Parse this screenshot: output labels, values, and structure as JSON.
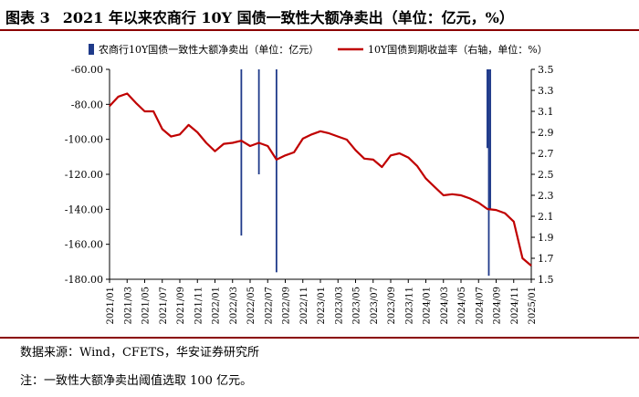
{
  "header": {
    "label": "图表 3",
    "title": "2021 年以来农商行 10Y 国债一致性大额净卖出（单位：亿元，%）"
  },
  "footer": {
    "source": "数据来源：Wind，CFETS，华安证券研究所",
    "note": "注：一致性大额净卖出阈值选取 100 亿元。"
  },
  "chart_data": {
    "type": "bar+line",
    "legend": [
      "农商行10Y国债一致性大额净卖出（单位：亿元）",
      "10Y国债到期收益率（右轴，单位：%）"
    ],
    "legend_position": "top",
    "colors": {
      "bars": "#1f3a8a",
      "line": "#c00000"
    },
    "x_tick_labels": [
      "2021/01",
      "2021/03",
      "2021/05",
      "2021/07",
      "2021/09",
      "2021/11",
      "2022/01",
      "2022/03",
      "2022/05",
      "2022/07",
      "2022/09",
      "2022/11",
      "2023/01",
      "2023/03",
      "2023/05",
      "2023/07",
      "2023/09",
      "2023/11",
      "2024/01",
      "2024/03",
      "2024/05",
      "2024/07",
      "2024/09",
      "2024/11",
      "2025/01"
    ],
    "y_left": {
      "min": -180,
      "max": -60,
      "ticks": [
        "-60.00",
        "-80.00",
        "-100.00",
        "-120.00",
        "-140.00",
        "-160.00",
        "-180.00"
      ]
    },
    "y_right": {
      "min": 1.5,
      "max": 3.5,
      "ticks": [
        "3.5",
        "3.3",
        "3.1",
        "2.9",
        "2.7",
        "2.5",
        "2.3",
        "2.1",
        "1.9",
        "1.7",
        "1.5"
      ]
    },
    "bars": [
      {
        "date": "2022/04",
        "value": -155
      },
      {
        "date": "2022/06",
        "value": -120
      },
      {
        "date": "2022/08",
        "value": -176
      },
      {
        "date": "2024/08",
        "value": -105
      },
      {
        "date": "2024/08",
        "value": -178
      },
      {
        "date": "2024/08",
        "value": -140
      }
    ],
    "line": {
      "name": "10Y国债到期收益率（右轴，单位：%）",
      "points": [
        [
          "2021/01",
          3.15
        ],
        [
          "2021/02",
          3.24
        ],
        [
          "2021/03",
          3.27
        ],
        [
          "2021/04",
          3.18
        ],
        [
          "2021/05",
          3.1
        ],
        [
          "2021/06",
          3.1
        ],
        [
          "2021/07",
          2.93
        ],
        [
          "2021/08",
          2.86
        ],
        [
          "2021/09",
          2.88
        ],
        [
          "2021/10",
          2.97
        ],
        [
          "2021/11",
          2.9
        ],
        [
          "2021/12",
          2.8
        ],
        [
          "2022/01",
          2.72
        ],
        [
          "2022/02",
          2.79
        ],
        [
          "2022/03",
          2.8
        ],
        [
          "2022/04",
          2.82
        ],
        [
          "2022/05",
          2.77
        ],
        [
          "2022/06",
          2.8
        ],
        [
          "2022/07",
          2.77
        ],
        [
          "2022/08",
          2.64
        ],
        [
          "2022/09",
          2.68
        ],
        [
          "2022/10",
          2.71
        ],
        [
          "2022/11",
          2.84
        ],
        [
          "2022/12",
          2.88
        ],
        [
          "2023/01",
          2.91
        ],
        [
          "2023/02",
          2.89
        ],
        [
          "2023/03",
          2.86
        ],
        [
          "2023/04",
          2.83
        ],
        [
          "2023/05",
          2.73
        ],
        [
          "2023/06",
          2.65
        ],
        [
          "2023/07",
          2.64
        ],
        [
          "2023/08",
          2.57
        ],
        [
          "2023/09",
          2.68
        ],
        [
          "2023/10",
          2.7
        ],
        [
          "2023/11",
          2.66
        ],
        [
          "2023/12",
          2.58
        ],
        [
          "2024/01",
          2.46
        ],
        [
          "2024/02",
          2.38
        ],
        [
          "2024/03",
          2.3
        ],
        [
          "2024/04",
          2.31
        ],
        [
          "2024/05",
          2.3
        ],
        [
          "2024/06",
          2.27
        ],
        [
          "2024/07",
          2.23
        ],
        [
          "2024/08",
          2.17
        ],
        [
          "2024/09",
          2.16
        ],
        [
          "2024/10",
          2.13
        ],
        [
          "2024/11",
          2.05
        ],
        [
          "2024/12",
          1.7
        ],
        [
          "2025/01",
          1.63
        ]
      ]
    }
  }
}
